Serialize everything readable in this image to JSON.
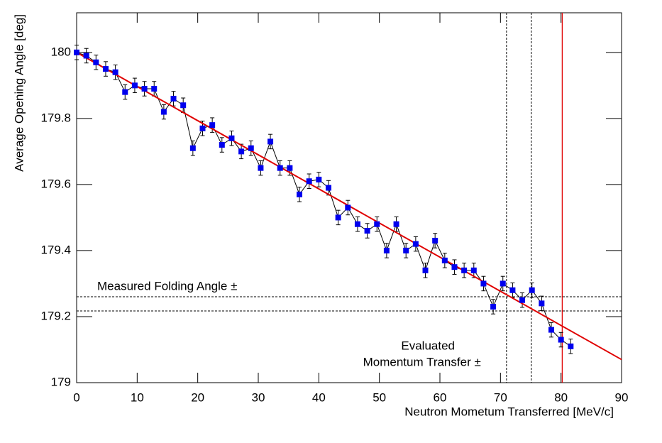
{
  "chart_data": {
    "type": "scatter",
    "xlabel": "Neutron Mometum Transferred [MeV/c]",
    "ylabel": "Average Opening Angle [deg]",
    "xlim": [
      0,
      90
    ],
    "ylim": [
      179,
      180.12
    ],
    "xticks": [
      0,
      10,
      20,
      30,
      40,
      50,
      60,
      70,
      80,
      90
    ],
    "yticks": [
      179,
      179.2,
      179.4,
      179.6,
      179.8,
      180
    ],
    "series": [
      {
        "color": "#0000ee",
        "x": [
          0,
          1.6,
          3.2,
          4.8,
          6.4,
          8,
          9.6,
          11.2,
          12.8,
          14.4,
          16,
          17.6,
          19.2,
          20.8,
          22.4,
          24,
          25.6,
          27.2,
          28.8,
          30.4,
          32,
          33.6,
          35.2,
          36.8,
          38.4,
          40,
          41.6,
          43.2,
          44.8,
          46.4,
          48,
          49.6,
          51.2,
          52.8,
          54.4,
          56,
          57.6,
          59.2,
          60.8,
          62.4,
          64,
          65.6,
          67.2,
          68.8,
          70.4,
          72,
          73.6,
          75.2,
          76.8,
          78.4,
          80,
          81.6
        ],
        "values": [
          180.0,
          179.99,
          179.97,
          179.95,
          179.94,
          179.88,
          179.9,
          179.89,
          179.89,
          179.82,
          179.86,
          179.84,
          179.71,
          179.77,
          179.78,
          179.72,
          179.74,
          179.7,
          179.71,
          179.65,
          179.73,
          179.65,
          179.65,
          179.57,
          179.61,
          179.615,
          179.59,
          179.5,
          179.53,
          179.48,
          179.46,
          179.48,
          179.4,
          179.48,
          179.4,
          179.42,
          179.34,
          179.43,
          179.37,
          179.35,
          179.34,
          179.34,
          179.3,
          179.23,
          179.3,
          179.28,
          179.25,
          179.28,
          179.24,
          179.16,
          179.13,
          179.11
        ],
        "errors": [
          0.022,
          0.022,
          0.022,
          0.022,
          0.022,
          0.022,
          0.022,
          0.022,
          0.022,
          0.022,
          0.022,
          0.022,
          0.022,
          0.022,
          0.022,
          0.022,
          0.022,
          0.022,
          0.022,
          0.022,
          0.022,
          0.022,
          0.022,
          0.022,
          0.022,
          0.022,
          0.022,
          0.022,
          0.022,
          0.022,
          0.022,
          0.022,
          0.022,
          0.022,
          0.022,
          0.022,
          0.022,
          0.022,
          0.022,
          0.022,
          0.022,
          0.022,
          0.022,
          0.022,
          0.022,
          0.022,
          0.022,
          0.022,
          0.022,
          0.022,
          0.022,
          0.022
        ]
      }
    ],
    "fit": {
      "color": "#e00000",
      "x": [
        0,
        90
      ],
      "values": [
        180.0,
        179.07
      ]
    },
    "hlines": [
      179.26,
      179.217
    ],
    "vlines": [
      71.0,
      75.1
    ],
    "marker_vline": {
      "color": "#e00000",
      "value": 80.2
    },
    "annotations": [
      {
        "text": "Measured Folding Angle ±",
        "x": 3.4,
        "y": 179.29
      },
      {
        "text": "Evaluated",
        "x": 53.6,
        "y": 179.11
      },
      {
        "text": "Momentum Transfer ±",
        "x": 47.3,
        "y": 179.06
      }
    ]
  }
}
